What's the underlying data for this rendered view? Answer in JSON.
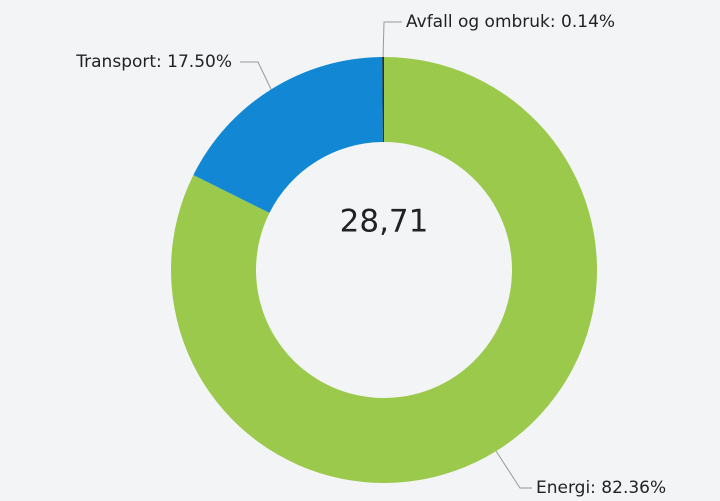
{
  "chart_data": {
    "type": "donut",
    "center_label": "28,71",
    "values": [
      82.36,
      17.5,
      0.14
    ],
    "value_labels": [
      "Energi: 82.36%",
      "Transport: 17.50%",
      "Avfall og ombruk: 0.14%"
    ],
    "colors": [
      "#9bc94b",
      "#1288d4",
      "#16324f"
    ]
  }
}
